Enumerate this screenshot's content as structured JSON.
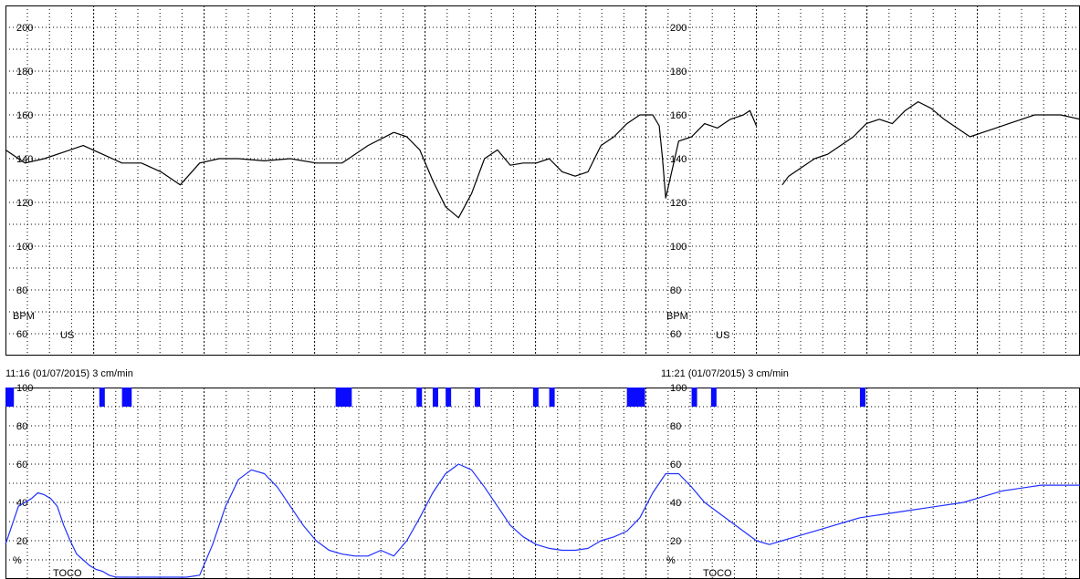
{
  "chart_data": {
    "type": "line",
    "grid": true,
    "fhr": {
      "ylim": [
        50,
        210
      ],
      "yticks": [
        60,
        80,
        100,
        120,
        140,
        160,
        180,
        200
      ],
      "unit_label": "BPM",
      "channel_label": "US",
      "segments": [
        {
          "x": [
            0,
            3,
            6,
            9,
            12,
            15,
            18,
            21,
            24,
            27,
            30,
            33,
            36,
            40,
            44,
            48,
            52,
            56,
            60
          ],
          "y": [
            144,
            138,
            140,
            143,
            146,
            142,
            138,
            138,
            134,
            128,
            138,
            140,
            140,
            139,
            140,
            138,
            138,
            146,
            152
          ]
        },
        {
          "x": [
            60,
            62,
            64,
            66,
            68,
            70,
            72,
            74,
            76,
            78,
            80,
            82,
            84,
            86,
            88,
            90,
            92
          ],
          "y": [
            152,
            150,
            144,
            130,
            118,
            113,
            124,
            140,
            144,
            137,
            138,
            138,
            140,
            134,
            132,
            134,
            146
          ]
        },
        {
          "x": [
            92,
            94,
            96,
            98,
            100,
            101,
            101.5,
            102,
            104,
            106,
            108,
            110,
            112,
            114,
            115,
            116
          ],
          "y": [
            146,
            150,
            156,
            160,
            160,
            155,
            140,
            122,
            148,
            150,
            156,
            154,
            158,
            160,
            162,
            155
          ]
        },
        {
          "x": [
            120,
            121,
            123,
            125,
            127,
            129,
            131,
            133,
            135,
            137,
            139,
            141,
            143,
            145,
            147,
            149,
            151,
            153,
            155,
            157,
            159,
            161,
            163,
            166
          ],
          "y": [
            128,
            132,
            136,
            140,
            142,
            146,
            150,
            156,
            158,
            156,
            162,
            166,
            163,
            158,
            154,
            150,
            152,
            154,
            156,
            158,
            160,
            160,
            160,
            158
          ]
        }
      ]
    },
    "header_left": "11:16 (01/07/2015) 3 cm/min",
    "header_right": "11:21 (01/07/2015) 3 cm/min",
    "toco": {
      "ylim": [
        0,
        100
      ],
      "yticks": [
        20,
        40,
        60,
        80,
        100
      ],
      "unit_label": "%",
      "channel_label": "TOCO",
      "x": [
        0,
        1,
        2,
        3,
        4,
        5,
        6,
        7,
        8,
        9,
        10,
        11,
        12,
        13,
        14,
        15,
        16,
        17,
        18,
        19,
        20,
        22,
        24,
        26,
        28,
        30,
        32,
        34,
        36,
        38,
        40,
        42,
        44,
        46,
        48,
        50,
        52,
        54,
        56,
        58,
        60,
        62,
        64,
        66,
        68,
        70,
        72,
        74,
        76,
        78,
        80,
        82,
        84,
        86,
        88,
        90,
        92,
        94,
        96,
        98,
        100,
        102,
        104,
        106,
        108,
        110,
        112,
        114,
        116,
        118,
        120,
        122,
        124,
        126,
        128,
        130,
        132,
        134,
        136,
        138,
        140,
        142,
        144,
        146,
        148,
        150,
        152,
        154,
        156,
        158,
        160,
        162,
        164,
        166
      ],
      "y": [
        18,
        28,
        38,
        40,
        42,
        45,
        44,
        42,
        38,
        28,
        20,
        13,
        10,
        7,
        5,
        4,
        2,
        1,
        0,
        0,
        0,
        0,
        0,
        0,
        0,
        2,
        18,
        38,
        52,
        57,
        55,
        48,
        38,
        28,
        20,
        15,
        13,
        12,
        12,
        15,
        12,
        20,
        32,
        45,
        55,
        60,
        57,
        48,
        38,
        28,
        22,
        18,
        16,
        15,
        15,
        16,
        20,
        22,
        25,
        32,
        45,
        55,
        55,
        48,
        40,
        35,
        30,
        25,
        20,
        18,
        20,
        22,
        24,
        26,
        28,
        30,
        32,
        33,
        34,
        35,
        36,
        37,
        38,
        39,
        40,
        42,
        44,
        46,
        47,
        48,
        49,
        49,
        49,
        49
      ],
      "markers": [
        {
          "x": 0,
          "w": 1.3
        },
        {
          "x": 14.5,
          "w": 0.8
        },
        {
          "x": 18,
          "w": 1.5
        },
        {
          "x": 51,
          "w": 2.5
        },
        {
          "x": 63.5,
          "w": 0.8
        },
        {
          "x": 66,
          "w": 0.6
        },
        {
          "x": 68,
          "w": 0.6
        },
        {
          "x": 72.5,
          "w": 0.8
        },
        {
          "x": 81.5,
          "w": 0.6
        },
        {
          "x": 84,
          "w": 0.6
        },
        {
          "x": 96,
          "w": 2.8
        },
        {
          "x": 106,
          "w": 0.7
        },
        {
          "x": 109,
          "w": 0.7
        },
        {
          "x": 132,
          "w": 0.6
        }
      ]
    },
    "colors": {
      "fhr_line": "#000000",
      "toco_line": "#1f2fff",
      "marker": "#0a0aff",
      "grid": "#000000"
    }
  }
}
